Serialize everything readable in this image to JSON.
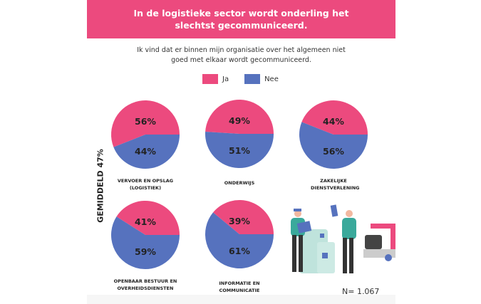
{
  "header": {
    "title": "In de logistieke sector wordt onderling het slechtst gecommuniceerd."
  },
  "subtitle": "Ik vind dat er binnen mijn organisatie over het algemeen niet goed met elkaar wordt gecommuniceerd.",
  "average_label": "GEMIDDELD 47%",
  "sample_size": "N= 1.067",
  "colors": {
    "ja": "#ec4a7e",
    "nee": "#5672be",
    "banner": "#ec4a7e"
  },
  "illustration": "logistics-workers-with-boxes-and-truck-illustration",
  "chart_data": {
    "type": "pie",
    "legend": [
      "Ja",
      "Nee"
    ],
    "legend_placement": "top",
    "pies": [
      {
        "label": "VERVOER EN OPSLAG (LOGISTIEK)",
        "values": [
          56,
          44
        ],
        "value_labels": [
          "56%",
          "44%"
        ]
      },
      {
        "label": "ONDERWIJS",
        "values": [
          49,
          51
        ],
        "value_labels": [
          "49%",
          "51%"
        ]
      },
      {
        "label": "ZAKELIJKE DIENSTVERLENING",
        "values": [
          44,
          56
        ],
        "value_labels": [
          "44%",
          "56%"
        ]
      },
      {
        "label": "OPENBAAR BESTUUR EN OVERHEIDSDIENSTEN",
        "values": [
          41,
          59
        ],
        "value_labels": [
          "41%",
          "59%"
        ]
      },
      {
        "label": "INFORMATIE EN COMMUNICATIE",
        "values": [
          39,
          61
        ],
        "value_labels": [
          "39%",
          "61%"
        ]
      }
    ]
  }
}
